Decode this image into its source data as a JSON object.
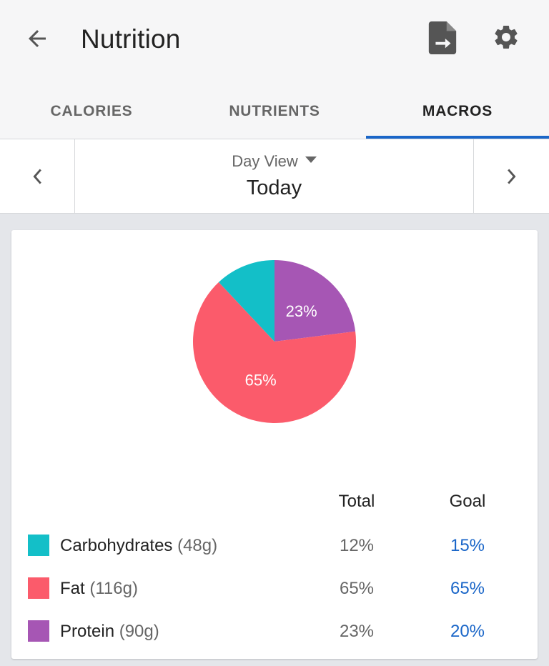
{
  "header": {
    "title": "Nutrition",
    "back_icon": "arrow-back-icon",
    "export_icon": "file-export-icon",
    "settings_icon": "gear-icon"
  },
  "tabs": [
    {
      "label": "CALORIES",
      "active": false
    },
    {
      "label": "NUTRIENTS",
      "active": false
    },
    {
      "label": "MACROS",
      "active": true
    }
  ],
  "date_nav": {
    "view_label": "Day View",
    "date_label": "Today"
  },
  "chart_data": {
    "type": "pie",
    "slices": [
      {
        "name": "Protein",
        "value": 23,
        "label": "23%",
        "color": "#a656b4"
      },
      {
        "name": "Fat",
        "value": 65,
        "label": "65%",
        "color": "#fb5b6b"
      },
      {
        "name": "Carbohydrates",
        "value": 12,
        "label": "",
        "color": "#13bfc8"
      }
    ]
  },
  "table": {
    "col_total": "Total",
    "col_goal": "Goal",
    "rows": [
      {
        "name": "Carbohydrates",
        "grams": "(48g)",
        "total": "12%",
        "goal": "15%",
        "color": "#13bfc8"
      },
      {
        "name": "Fat",
        "grams": "(116g)",
        "total": "65%",
        "goal": "65%",
        "color": "#fb5b6b"
      },
      {
        "name": "Protein",
        "grams": "(90g)",
        "total": "23%",
        "goal": "20%",
        "color": "#a656b4"
      }
    ]
  },
  "colors": {
    "accent": "#1a66c8"
  }
}
